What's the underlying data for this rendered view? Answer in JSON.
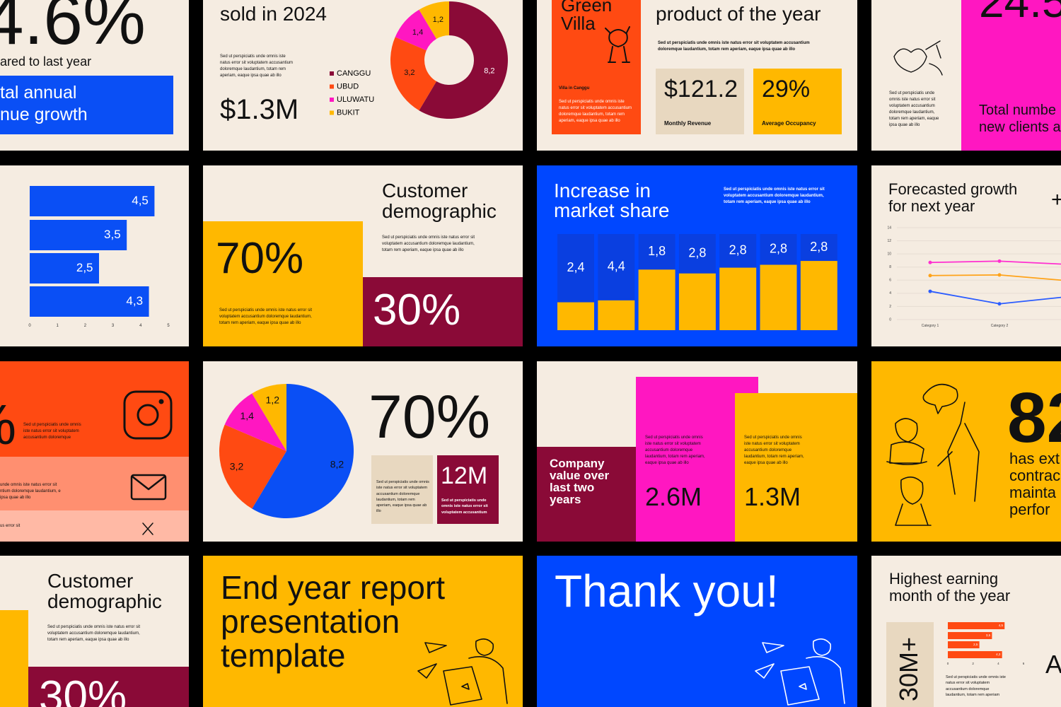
{
  "slides": {
    "revenue": {
      "value": "4.6%",
      "caption": "ared to last year",
      "box": [
        "tal annual",
        "nue growth"
      ]
    },
    "units": {
      "title": "sold in 2024",
      "body": "Sed ut perspiciatis unde omnis iste natus error sit voluptatem accusantium doloremque laudantium, totam rem aperiam, eaque ipsa quae ab illo",
      "total": "$1.3M"
    },
    "villa": {
      "name": [
        "Green",
        "Villa"
      ],
      "caption": "Villa in Canggu",
      "card_body": "Sed ut perspiciatis unde omnis iste natus error sit voluptatem accusantium doloremque laudantium, totam rem aperiam, eaque ipsa quae ab illo",
      "title": "product of the year",
      "body": "Sed ut perspiciatis unde omnis iste natus error sit voluptatem accusantium doloremque laudantium, totam rem aperiam, eaque ipsa quae ab illo",
      "stats": [
        {
          "value": "$121.2",
          "label": "Monthly Revenue"
        },
        {
          "value": "29%",
          "label": "Average Occupancy"
        }
      ]
    },
    "clients": {
      "value": "24.5",
      "body": "Sed ut perspiciatis unde omnis iste natus error sit voluptatem accusantium doloremque laudantium, totam rem aperiam, eaque ipsa quae ab illo",
      "title": [
        "Total numbe",
        "new clients a"
      ]
    },
    "demographic": {
      "title": [
        "Customer",
        "demographic"
      ],
      "body": "Sed ut perspiciatis unde omnis iste natus error sit voluptatem accusantium doloremque laudantium, totam rem aperiam, eaque ipsa quae ab illo",
      "major": "70%",
      "major_body": "Sed ut perspiciatis unde omnis iste natus error sit voluptatem accusantium doloremque laudantium, totam rem aperiam, eaque ipsa quae ab illo",
      "minor": "30%"
    },
    "market": {
      "title": [
        "Increase in",
        "market share"
      ],
      "body": "Sed ut perspiciatis unde omnis iste natus error sit voluptatem accusantium doloremque laudantium, totam rem aperiam, eaque ipsa quae ab illo"
    },
    "forecast": {
      "title": [
        "Forecasted growth",
        "for next year"
      ],
      "mark": "+"
    },
    "contact": {
      "symbol": "%",
      "body": "Sed ut perspiciatis unde omnis iste natus error sit voluptatem accusantium doloremque",
      "band_body": "unde omnis iste natus error sit ntium doloremque laudantium, e ipsa quae ab illo",
      "band_tail": "us error sit"
    },
    "share": {
      "value": "70%",
      "box_body": "Sed ut perspiciatis unde omnis iste natus error sit voluptatem accusantium doloremque laudantium, totam rem aperiam, eaque ipsa quae ab illo",
      "stat": "12M",
      "stat_body": "Sed ut perspiciatis unde omnis iste natus error sit voluptatem accusantium"
    },
    "company": {
      "title": "Company value over last two years",
      "items": [
        {
          "body": "Sed ut perspiciatis unde omnis iste natus error sit voluptatem accusantium doloremque laudantium, totam rem aperiam, eaque ipsa quae ab illo",
          "value": "2.6M"
        },
        {
          "body": "Sed ut perspiciatis unde omnis iste natus error sit voluptatem accusantium doloremque laudantium, totam rem aperiam, eaque ipsa quae ab illo",
          "value": "1.3M"
        }
      ]
    },
    "contracts": {
      "value": "82",
      "lines": [
        "has ext",
        "contrac",
        "mainta",
        "perfor"
      ]
    },
    "demographic2": {
      "title": [
        "Customer",
        "demographic"
      ],
      "body": "Sed ut perspiciatis unde omnis iste natus error sit voluptatem accusantium doloremque laudantium, totam rem aperiam, eaque ipsa quae ab illo",
      "minor": "30%"
    },
    "cover": {
      "title": [
        "End year report",
        "presentation",
        "template"
      ]
    },
    "thanks": {
      "title": "Thank you!"
    },
    "earning": {
      "title": [
        "Highest earning",
        "month of the year"
      ],
      "value": "30M+",
      "body": "Sed ut perspiciatis unde omnis iste natus error sit voluptatem accusantium doloremque laudantium, totam rem aperiam",
      "mark": "A"
    }
  },
  "chart_data": [
    {
      "type": "donut",
      "categories": [
        "CANGGU",
        "UBUD",
        "ULUWATU",
        "BUKIT"
      ],
      "values": [
        8.2,
        3.2,
        1.4,
        1.2
      ],
      "value_labels": [
        "8,2",
        "3,2",
        "1,4",
        "1,2"
      ],
      "colors": [
        "#8a0a37",
        "#ff4a12",
        "#ff17c1",
        "#ffb800"
      ]
    },
    {
      "type": "hbar",
      "values": [
        4.5,
        3.5,
        2.5,
        4.3
      ],
      "value_labels": [
        "4,5",
        "3,5",
        "2,5",
        "4,3"
      ],
      "xlim": [
        0,
        5
      ],
      "xticks": [
        0,
        1,
        2,
        3,
        4,
        5
      ],
      "color": "#0a4ff5"
    },
    {
      "type": "bar",
      "values": [
        2.4,
        4.4,
        1.8,
        2.8,
        2.8,
        2.8,
        2.8
      ],
      "value_labels": [
        "2,4",
        "4,4",
        "1,8",
        "2,8",
        "2,8",
        "2,8",
        "2,8"
      ],
      "heights": [
        2.9,
        3.1,
        6.3,
        5.9,
        6.5,
        6.8,
        7.2
      ],
      "ylim": [
        0,
        10
      ],
      "color": "#ffb800"
    },
    {
      "type": "line",
      "categories": [
        "Category 1",
        "Category 2",
        null
      ],
      "series": [
        {
          "color": "#ff2fd0",
          "values": [
            8.7,
            8.9,
            8.4
          ]
        },
        {
          "color": "#ffa319",
          "values": [
            6.7,
            6.8,
            5.9
          ]
        },
        {
          "color": "#2b5cff",
          "values": [
            4.3,
            2.4,
            3.5
          ]
        }
      ],
      "ylim": [
        0,
        14
      ],
      "yticks": [
        0,
        2,
        4,
        6,
        8,
        10,
        12,
        14
      ],
      "grid": true
    },
    {
      "type": "pie",
      "values": [
        8.2,
        3.2,
        1.4,
        1.2
      ],
      "value_labels": [
        "8,2",
        "3,2",
        "1,4",
        "1,2"
      ],
      "colors": [
        "#0a4ff5",
        "#ff4a12",
        "#ff17c1",
        "#ffb800"
      ]
    },
    {
      "type": "hbar",
      "values": [
        4.5,
        3.5,
        2.5,
        4.3
      ],
      "value_labels": [
        "4,5",
        "3,5",
        "2,5",
        "4,3"
      ],
      "xlim": [
        0,
        6
      ],
      "xticks": [
        0,
        2,
        4,
        6
      ],
      "color": "#ff4a12"
    }
  ]
}
